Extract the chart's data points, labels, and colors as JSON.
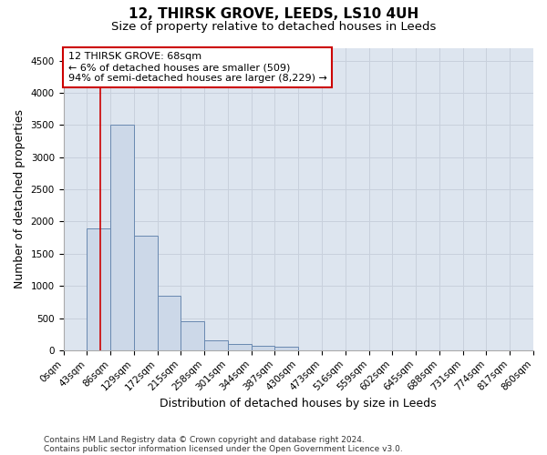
{
  "title_line1": "12, THIRSK GROVE, LEEDS, LS10 4UH",
  "title_line2": "Size of property relative to detached houses in Leeds",
  "xlabel": "Distribution of detached houses by size in Leeds",
  "ylabel": "Number of detached properties",
  "bin_edges": [
    0,
    43,
    86,
    129,
    172,
    215,
    258,
    301,
    344,
    387,
    430,
    473,
    516,
    559,
    602,
    645,
    688,
    731,
    774,
    817,
    860
  ],
  "bar_heights": [
    5,
    1900,
    3500,
    1780,
    850,
    450,
    160,
    100,
    75,
    60,
    0,
    0,
    0,
    0,
    0,
    0,
    0,
    0,
    0,
    0
  ],
  "bar_color": "#ccd8e8",
  "bar_edge_color": "#6888b0",
  "property_size": 68,
  "property_line_color": "#cc0000",
  "annotation_text_line1": "12 THIRSK GROVE: 68sqm",
  "annotation_text_line2": "← 6% of detached houses are smaller (509)",
  "annotation_text_line3": "94% of semi-detached houses are larger (8,229) →",
  "annotation_box_color": "#ffffff",
  "annotation_box_edge_color": "#cc0000",
  "ylim": [
    0,
    4700
  ],
  "yticks": [
    0,
    500,
    1000,
    1500,
    2000,
    2500,
    3000,
    3500,
    4000,
    4500
  ],
  "grid_color": "#c8d0dc",
  "background_color": "#dde5ef",
  "footer_line1": "Contains HM Land Registry data © Crown copyright and database right 2024.",
  "footer_line2": "Contains public sector information licensed under the Open Government Licence v3.0.",
  "title_fontsize": 11,
  "subtitle_fontsize": 9.5,
  "axis_label_fontsize": 9,
  "tick_fontsize": 7.5,
  "annotation_fontsize": 8,
  "footer_fontsize": 6.5
}
